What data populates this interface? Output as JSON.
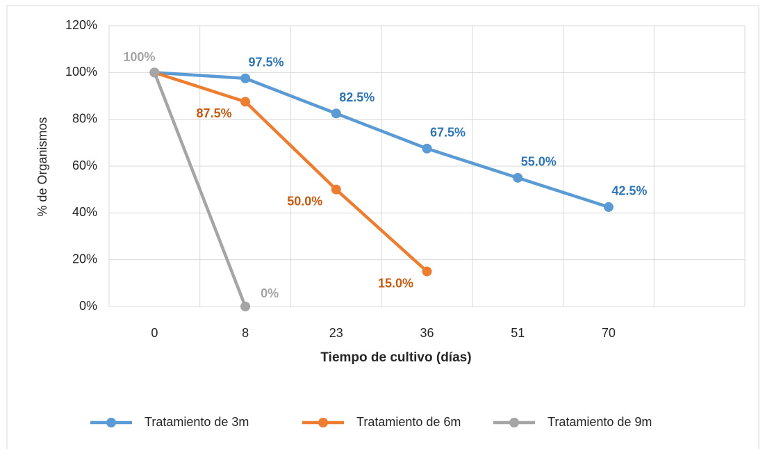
{
  "chart_data": {
    "type": "line",
    "x_label": "Tiempo de cultivo (días)",
    "y_label": "% de Organismos",
    "categories": [
      "0",
      "8",
      "23",
      "36",
      "51",
      "70",
      null
    ],
    "ylim": [
      0,
      120
    ],
    "yticks": [
      {
        "value": 0,
        "label": "0%"
      },
      {
        "value": 20,
        "label": "20%"
      },
      {
        "value": 40,
        "label": "40%"
      },
      {
        "value": 60,
        "label": "60%"
      },
      {
        "value": 80,
        "label": "80%"
      },
      {
        "value": 100,
        "label": "100%"
      },
      {
        "value": 120,
        "label": "120%"
      }
    ],
    "grid": true,
    "legend": "bottom",
    "series": [
      {
        "name": "Tratamiento de 3m",
        "color": "#5b9bd5",
        "label_color": "#2e75b6",
        "values": [
          100,
          97.5,
          82.5,
          67.5,
          55,
          42.5,
          null
        ],
        "value_labels": [
          null,
          "97.5%",
          "82.5%",
          "67.5%",
          "55.0%",
          "42.5%",
          null
        ]
      },
      {
        "name": "Tratamiento de 6m",
        "color": "#ed7d31",
        "label_color": "#c55a11",
        "values": [
          100,
          87.5,
          50,
          15,
          null,
          null,
          null
        ],
        "value_labels": [
          null,
          "87.5%",
          "50.0%",
          "15.0%",
          null,
          null,
          null
        ]
      },
      {
        "name": "Tratamiento de 9m",
        "color": "#a5a5a5",
        "label_color": "#a5a5a5",
        "values": [
          100,
          0,
          null,
          null,
          null,
          null,
          null
        ],
        "value_labels": [
          "100%",
          "0%",
          null,
          null,
          null,
          null,
          null
        ]
      }
    ]
  }
}
